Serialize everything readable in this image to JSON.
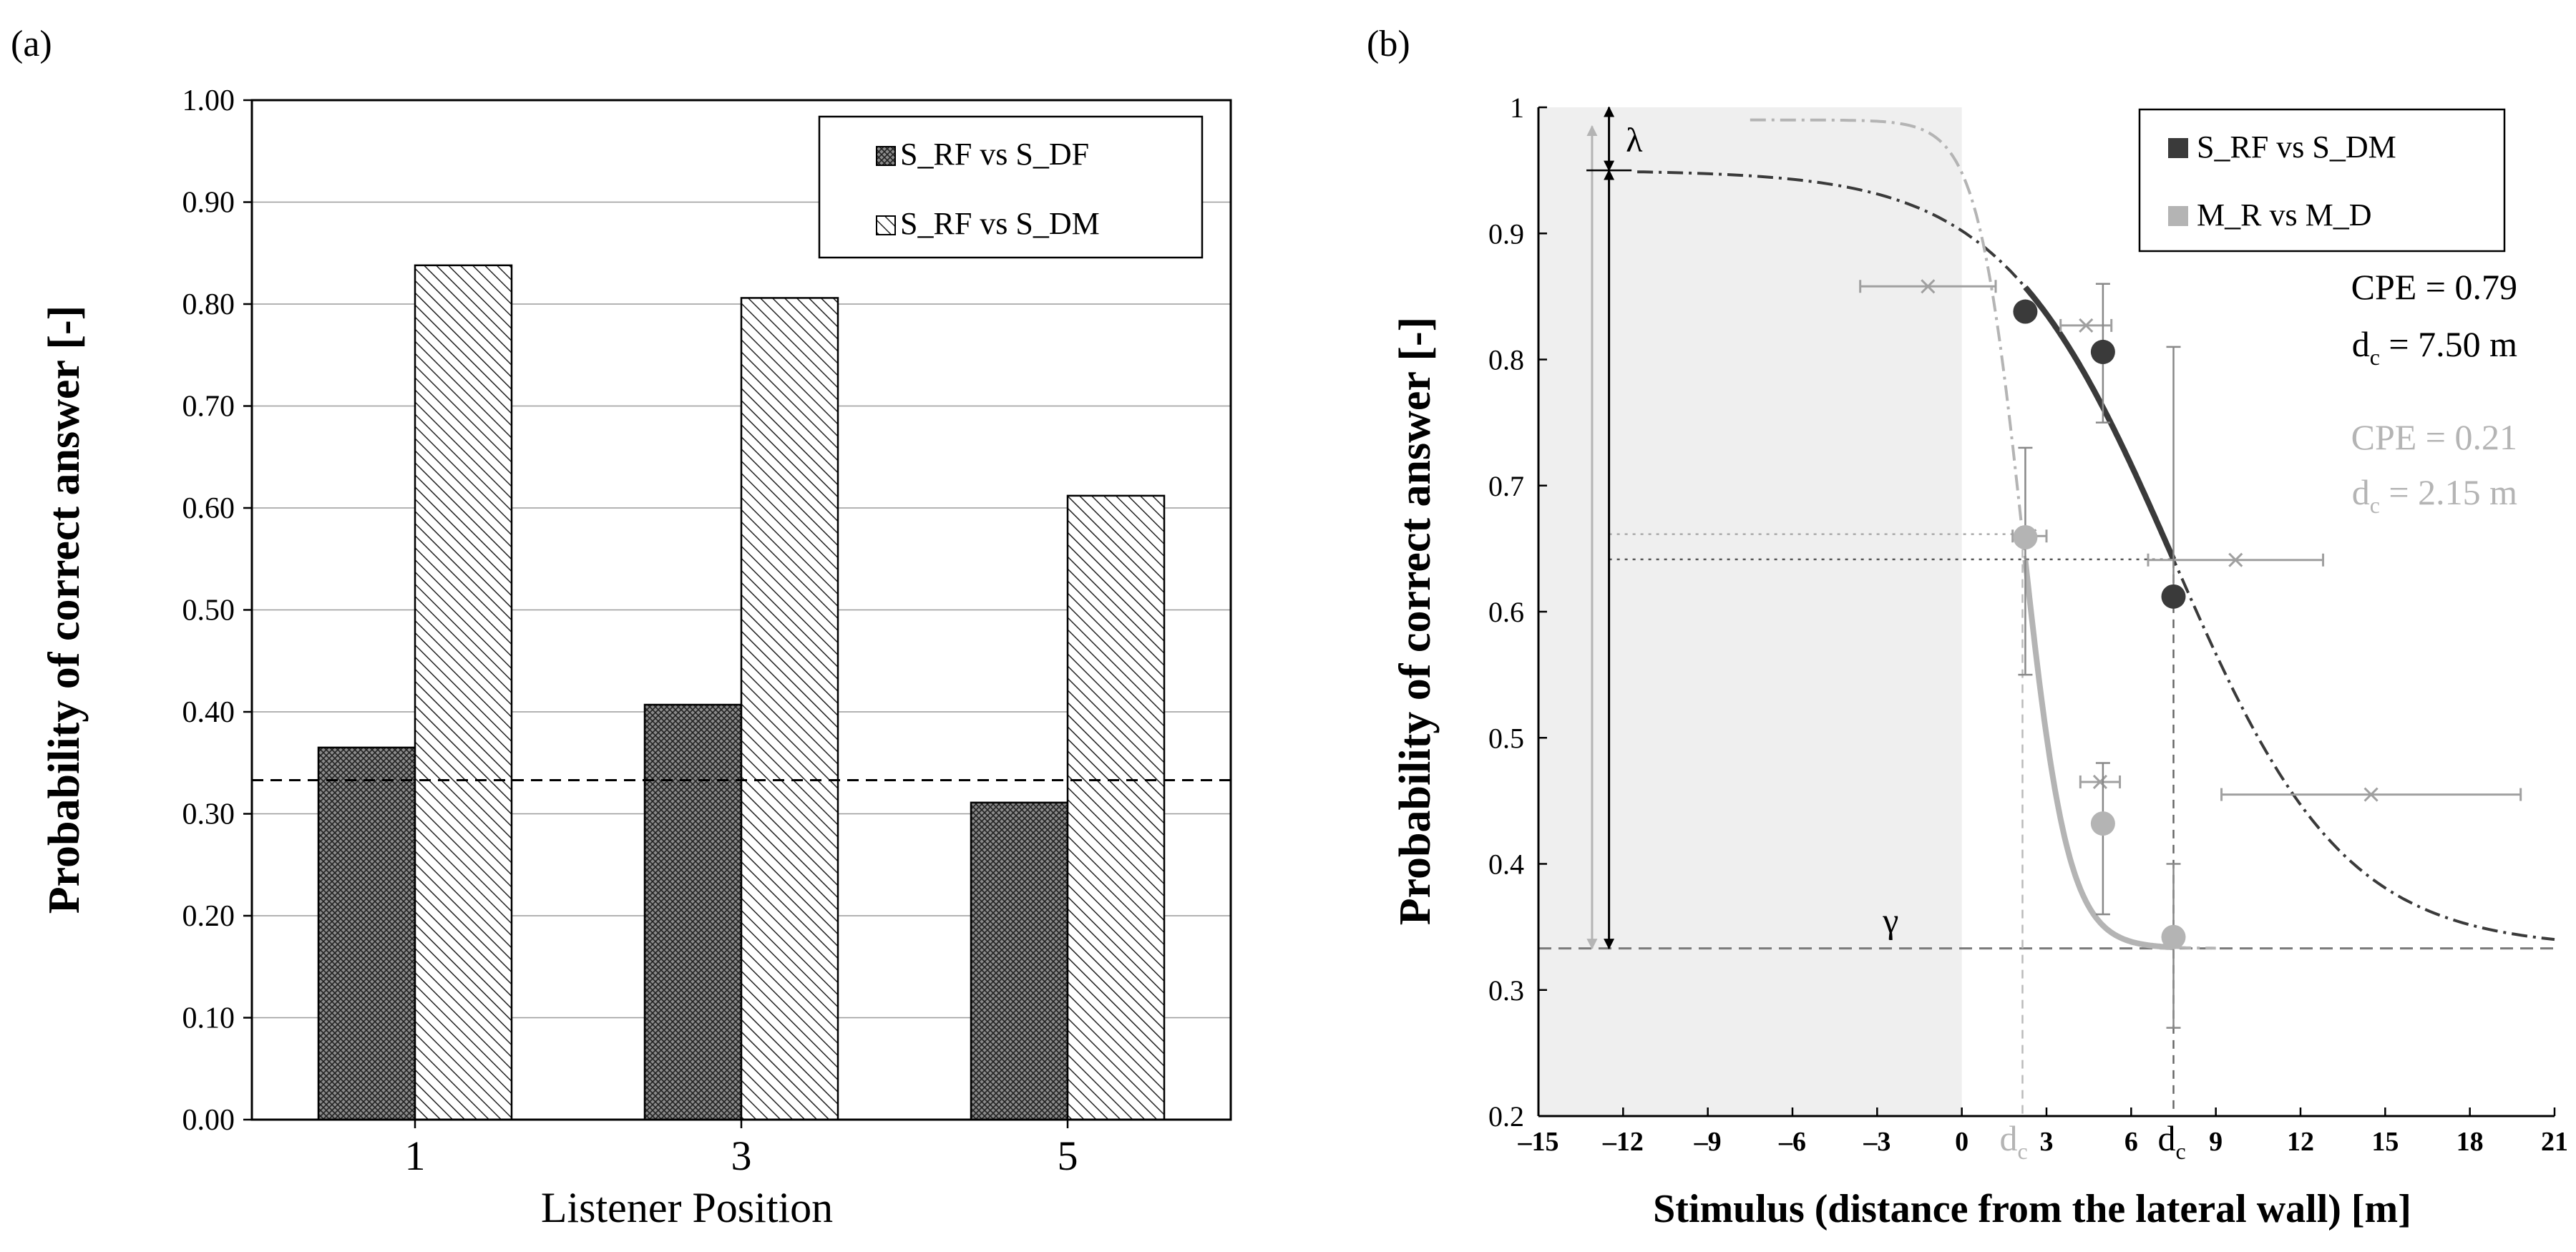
{
  "chart_data": [
    {
      "panel_label": "(a)",
      "type": "bar",
      "categories": [
        "1",
        "3",
        "5"
      ],
      "series": [
        {
          "name": "S_RF vs S_DF",
          "values": [
            0.365,
            0.407,
            0.311
          ]
        },
        {
          "name": "S_RF vs S_DM",
          "values": [
            0.838,
            0.806,
            0.612
          ]
        }
      ],
      "title": "",
      "xlabel": "Listener Position",
      "ylabel": "Probability of correct answer [-]",
      "ylim": [
        0,
        1
      ],
      "yticks": [
        "0.00",
        "0.10",
        "0.20",
        "0.30",
        "0.40",
        "0.50",
        "0.60",
        "0.70",
        "0.80",
        "0.90",
        "1.00"
      ],
      "grid": true,
      "legend": "top-right",
      "reference_line": 0.333
    },
    {
      "panel_label": "(b)",
      "type": "scatter",
      "xlabel": "Stimulus (distance from the lateral wall) [m]",
      "ylabel": "Probability of correct answer [-]",
      "xlim": [
        -15,
        21
      ],
      "ylim": [
        0.2,
        1.0
      ],
      "xticks": [
        "-15",
        "-12",
        "-9",
        "-6",
        "-3",
        "0",
        "3",
        "6",
        "9",
        "12",
        "15",
        "18",
        "21"
      ],
      "yticks": [
        "0.2",
        "0.3",
        "0.4",
        "0.5",
        "0.6",
        "0.7",
        "0.8",
        "0.9",
        "1"
      ],
      "legend": "top-right",
      "shaded_region": [
        -15,
        0
      ],
      "gamma": 0.333,
      "gamma_label": "γ",
      "lambda_label": "λ",
      "dc_marker_label": "d",
      "dc_marker_sub": "c",
      "series": [
        {
          "name": "S_RF vs S_DM",
          "color": "#3a3a3a",
          "x": [
            2.25,
            5,
            7.5
          ],
          "y": [
            0.838,
            0.806,
            0.612
          ],
          "cpe_text": "CPE = 0.79",
          "dc_prefix": "d",
          "dc_sub": "c",
          "dc_text": " = 7.50 m",
          "dc": 7.5,
          "lambda": 0.05
        },
        {
          "name": "M_R vs M_D",
          "color": "#b4b4b4",
          "x": [
            2.25,
            5,
            7.5
          ],
          "y": [
            0.659,
            0.432,
            0.342
          ],
          "cpe_text": "CPE = 0.21",
          "dc_prefix": "d",
          "dc_sub": "c",
          "dc_text": " = 2.15 m",
          "dc": 2.15,
          "lambda": 0.01
        }
      ]
    }
  ],
  "colors": {
    "axis": "#000000",
    "grid": "#9a9a9a",
    "shade": "#efefef",
    "dark_series": "#3a3a3a",
    "light_series": "#b4b4b4",
    "errbar": "#a0a0a0"
  }
}
